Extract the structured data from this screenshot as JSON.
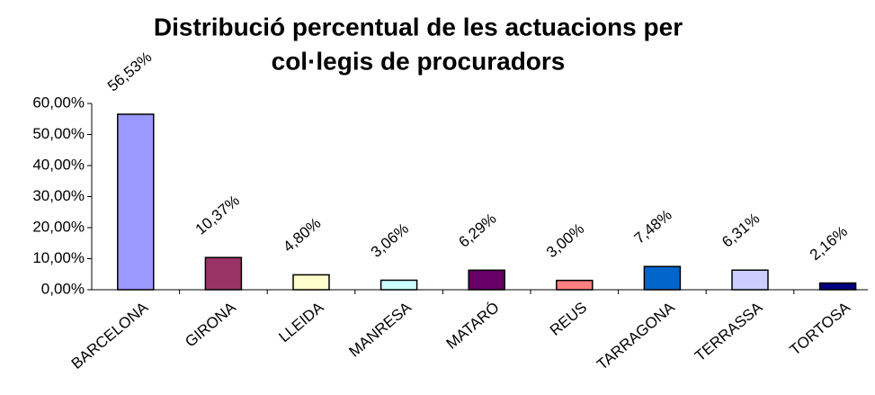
{
  "chart_data": {
    "type": "bar",
    "title": [
      "Distribució percentual de les actuacions per",
      "col·legis de procuradors"
    ],
    "categories": [
      "BARCELONA",
      "GIRONA",
      "LLEIDA",
      "MANRESA",
      "MATARÓ",
      "REUS",
      "TARRAGONA",
      "TERRASSA",
      "TORTOSA"
    ],
    "values": [
      56.53,
      10.37,
      4.8,
      3.06,
      6.29,
      3.0,
      7.48,
      6.31,
      2.16
    ],
    "value_labels": [
      "56,53%",
      "10,37%",
      "4,80%",
      "3,06%",
      "6,29%",
      "3,00%",
      "7,48%",
      "6,31%",
      "2,16%"
    ],
    "colors": [
      "#9999ff",
      "#993366",
      "#ffffcc",
      "#ccffff",
      "#660066",
      "#ff8080",
      "#0066cc",
      "#ccccff",
      "#000080"
    ],
    "ylim": [
      0,
      60
    ],
    "yticks": [
      {
        "value": 0,
        "label": "0,00%"
      },
      {
        "value": 10,
        "label": "10,00%"
      },
      {
        "value": 20,
        "label": "20,00%"
      },
      {
        "value": 30,
        "label": "30,00%"
      },
      {
        "value": 40,
        "label": "40,00%"
      },
      {
        "value": 50,
        "label": "50,00%"
      },
      {
        "value": 60,
        "label": "60,00%"
      }
    ],
    "grid": false
  }
}
